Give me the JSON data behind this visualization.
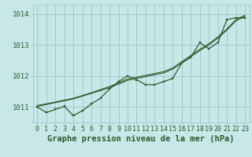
{
  "title": "Graphe pression niveau de la mer (hPa)",
  "bg_color": "#c8e8e8",
  "grid_color": "#99cccc",
  "line_color": "#2d5a2d",
  "ylim": [
    1010.5,
    1014.3
  ],
  "xlim": [
    -0.5,
    23.5
  ],
  "yticks": [
    1011,
    1012,
    1013,
    1014
  ],
  "xticks": [
    0,
    1,
    2,
    3,
    4,
    5,
    6,
    7,
    8,
    9,
    10,
    11,
    12,
    13,
    14,
    15,
    16,
    17,
    18,
    19,
    20,
    21,
    22,
    23
  ],
  "hours": [
    0,
    1,
    2,
    3,
    4,
    5,
    6,
    7,
    8,
    9,
    10,
    11,
    12,
    13,
    14,
    15,
    16,
    17,
    18,
    19,
    20,
    21,
    22,
    23
  ],
  "pressure_main": [
    1011.0,
    1010.82,
    1010.92,
    1011.02,
    1010.72,
    1010.88,
    1011.1,
    1011.28,
    1011.58,
    1011.82,
    1012.0,
    1011.88,
    1011.72,
    1011.72,
    1011.82,
    1011.92,
    1012.42,
    1012.6,
    1013.08,
    1012.88,
    1013.08,
    1013.82,
    1013.88,
    1013.88
  ],
  "pressure_linear1": [
    1011.02,
    1011.08,
    1011.14,
    1011.2,
    1011.26,
    1011.35,
    1011.44,
    1011.53,
    1011.62,
    1011.74,
    1011.86,
    1011.92,
    1011.98,
    1012.04,
    1012.1,
    1012.22,
    1012.42,
    1012.62,
    1012.82,
    1013.0,
    1013.22,
    1013.48,
    1013.78,
    1013.92
  ],
  "pressure_linear2": [
    1011.05,
    1011.1,
    1011.16,
    1011.22,
    1011.28,
    1011.37,
    1011.46,
    1011.56,
    1011.66,
    1011.78,
    1011.9,
    1011.96,
    1012.02,
    1012.08,
    1012.14,
    1012.26,
    1012.46,
    1012.66,
    1012.86,
    1013.04,
    1013.26,
    1013.52,
    1013.82,
    1013.96
  ],
  "tick_fontsize": 6,
  "label_fontsize": 7.5
}
